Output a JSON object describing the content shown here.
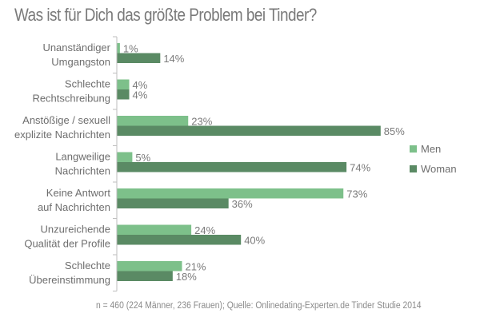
{
  "chart_data": {
    "type": "bar",
    "orientation": "horizontal",
    "title": "Was ist für Dich das größte Problem bei Tinder?",
    "categories": [
      [
        "Unanständiger",
        "Umgangston"
      ],
      [
        "Schlechte",
        "Rechtschreibung"
      ],
      [
        "Anstößige / sexuell",
        "explizite Nachrichten"
      ],
      [
        "Langweilige",
        "Nachrichten"
      ],
      [
        "Keine Antwort",
        "auf Nachrichten"
      ],
      [
        "Unzureichende",
        "Qualität der Profile"
      ],
      [
        "Schlechte",
        "Übereinstimmung"
      ]
    ],
    "series": [
      {
        "name": "Men",
        "color": "#7dc08a",
        "values": [
          1,
          4,
          23,
          5,
          73,
          24,
          21
        ]
      },
      {
        "name": "Woman",
        "color": "#5a8a64",
        "values": [
          14,
          4,
          85,
          74,
          36,
          40,
          18
        ]
      }
    ],
    "value_suffix": "%",
    "xlim": [
      0,
      100
    ],
    "xlabel": "",
    "ylabel": "",
    "grid": false,
    "legend": "right",
    "footnote": "n = 460 (224 Männer, 236 Frauen); Quelle: Onlinedating-Experten.de Tinder Studie 2014"
  }
}
